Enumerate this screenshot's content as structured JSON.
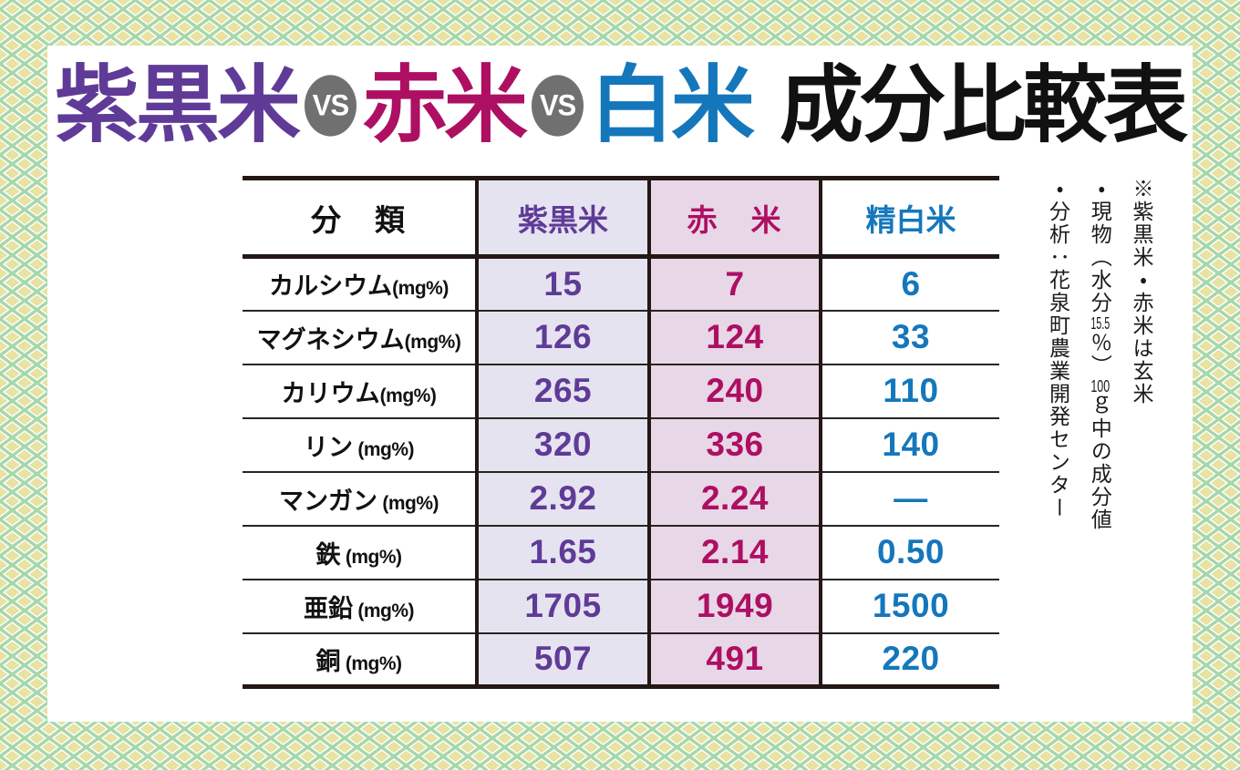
{
  "title": {
    "rice1": "紫黒米",
    "vs": "VS",
    "rice2": "赤米",
    "rice3": "白米",
    "suffix": "成分比較表"
  },
  "colors": {
    "purple": "#5f3b97",
    "crimson": "#ad0f63",
    "blue": "#1577bb",
    "badge_gray": "#717071",
    "purple_col_bg": "#e6e3f1",
    "pink_col_bg": "#e8d7e7",
    "border_dark": "#231815",
    "pattern_green": "#a6d7aa",
    "pattern_khaki": "#e8e2a3"
  },
  "table": {
    "headers": [
      "分　類",
      "紫黒米",
      "赤　米",
      "精白米"
    ],
    "rows": [
      {
        "name": "カルシウム",
        "unit": "(mg%)",
        "values": [
          "15",
          "7",
          "6"
        ]
      },
      {
        "name": "マグネシウム",
        "unit": "(mg%)",
        "values": [
          "126",
          "124",
          "33"
        ]
      },
      {
        "name": "カリウム",
        "unit": "(mg%)",
        "values": [
          "265",
          "240",
          "110"
        ]
      },
      {
        "name": "リン",
        "unit": " (mg%)",
        "values": [
          "320",
          "336",
          "140"
        ]
      },
      {
        "name": "マンガン",
        "unit": " (mg%)",
        "values": [
          "2.92",
          "2.24",
          "—"
        ]
      },
      {
        "name": "鉄",
        "unit": " (mg%)",
        "values": [
          "1.65",
          "2.14",
          "0.50"
        ]
      },
      {
        "name": "亜鉛",
        "unit": " (mg%)",
        "values": [
          "1705",
          "1949",
          "1500"
        ]
      },
      {
        "name": "銅",
        "unit": " (mg%)",
        "values": [
          "507",
          "491",
          "220"
        ]
      }
    ]
  },
  "notes": [
    "※紫黒米・赤米は玄米",
    "・現物（水分15.5％）100ｇ中の成分値",
    "・分析：花泉町農業開発センター"
  ],
  "chart_data": {
    "type": "table",
    "title": "紫黒米 VS 赤米 VS 白米 成分比較表",
    "columns": [
      "分類",
      "紫黒米",
      "赤米",
      "精白米"
    ],
    "rows": [
      [
        "カルシウム(mg%)",
        15,
        7,
        6
      ],
      [
        "マグネシウム(mg%)",
        126,
        124,
        33
      ],
      [
        "カリウム(mg%)",
        265,
        240,
        110
      ],
      [
        "リン(mg%)",
        320,
        336,
        140
      ],
      [
        "マンガン(mg%)",
        2.92,
        2.24,
        null
      ],
      [
        "鉄(mg%)",
        1.65,
        2.14,
        0.5
      ],
      [
        "亜鉛(mg%)",
        1705,
        1949,
        1500
      ],
      [
        "銅(mg%)",
        507,
        491,
        220
      ]
    ],
    "notes": [
      "※紫黒米・赤米は玄米",
      "・現物（水分15.5％）100ｇ中の成分値",
      "・分析：花泉町農業開発センター"
    ]
  }
}
